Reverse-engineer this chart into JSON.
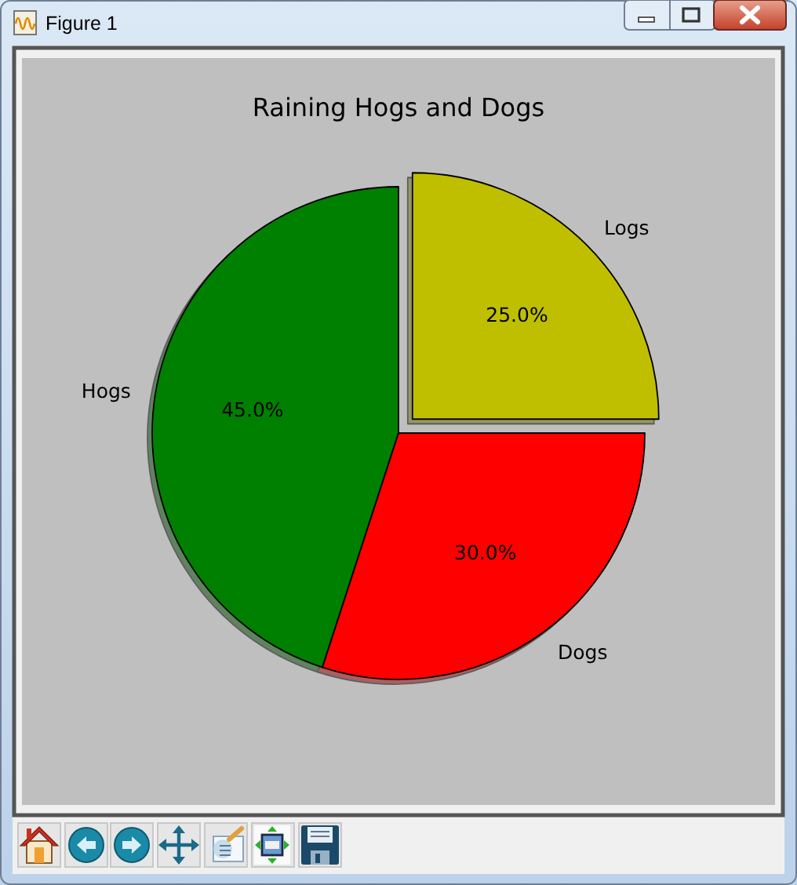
{
  "chart_data": {
    "type": "pie",
    "title": "Raining Hogs and Dogs",
    "categories": [
      "Logs",
      "Hogs",
      "Dogs"
    ],
    "values": [
      25,
      45,
      30
    ],
    "colors": [
      "#bfbf00",
      "#008000",
      "#ff0000"
    ],
    "value_labels": [
      "25.0%",
      "45.0%",
      "30.0%"
    ],
    "annotations": [
      "Figure 1"
    ]
  }
}
